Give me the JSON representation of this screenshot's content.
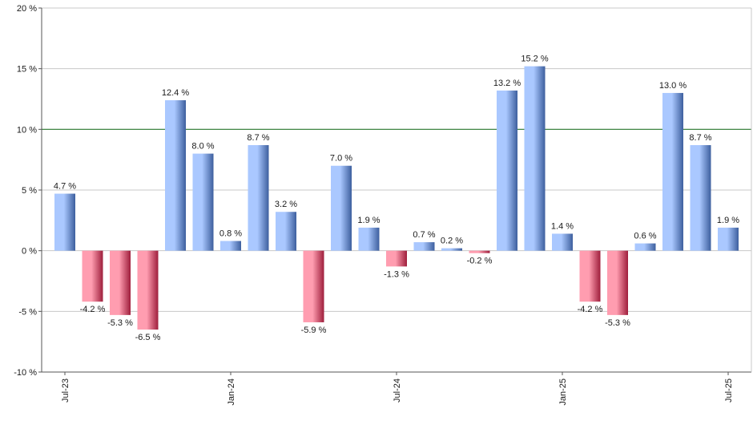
{
  "chart_data": {
    "type": "bar",
    "title": "",
    "xlabel": "",
    "ylabel": "",
    "ylim": [
      -10,
      20
    ],
    "yticks": [
      -10,
      -5,
      0,
      5,
      10,
      15,
      20
    ],
    "ytick_labels": [
      "-10 %",
      "-5 %",
      "0 %",
      "5 %",
      "10 %",
      "15 %",
      "20 %"
    ],
    "grid": "horizontal",
    "reference_line": {
      "value": 10,
      "color": "#2e7d32"
    },
    "x_tick_labels": [
      {
        "label": "Jul-23",
        "category_index": 0
      },
      {
        "label": "Jan-24",
        "category_index": 6
      },
      {
        "label": "Jul-24",
        "category_index": 12
      },
      {
        "label": "Jan-25",
        "category_index": 18
      },
      {
        "label": "Jul-25",
        "category_index": 24
      }
    ],
    "values": [
      4.7,
      -4.2,
      -5.3,
      -6.5,
      12.4,
      8.0,
      0.8,
      8.7,
      3.2,
      -5.9,
      7.0,
      1.9,
      -1.3,
      0.7,
      0.2,
      -0.2,
      13.2,
      15.2,
      1.4,
      -4.2,
      -5.3,
      0.6,
      13.0,
      8.7,
      1.9
    ],
    "data_labels": [
      "4.7 %",
      "-4.2 %",
      "-5.3 %",
      "-6.5 %",
      "12.4 %",
      "8.0 %",
      "0.8 %",
      "8.7 %",
      "3.2 %",
      "-5.9 %",
      "7.0 %",
      "1.9 %",
      "-1.3 %",
      "0.7 %",
      "0.2 %",
      "-0.2 %",
      "13.2 %",
      "15.2 %",
      "1.4 %",
      "-4.2 %",
      "-5.3 %",
      "0.6 %",
      "13.0 %",
      "8.7 %",
      "1.9 %"
    ],
    "colors": {
      "positive_light": "#aac8ff",
      "positive_dark": "#3d5f9e",
      "negative_light": "#ff9db0",
      "negative_dark": "#9e1e3c",
      "grid": "#c8c8c8",
      "axis": "#555555"
    }
  }
}
